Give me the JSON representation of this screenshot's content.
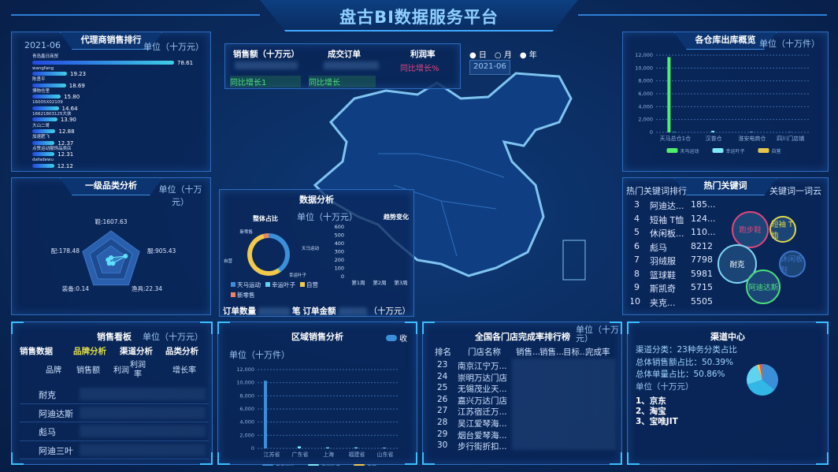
{
  "header": {
    "title": "盘古BI数据服务平台"
  },
  "agent_rank": {
    "title": "代理商销售排行",
    "date": "2021-06",
    "unit": "单位（十万元）",
    "items": [
      {
        "name": "青岛鑫日商贸",
        "value": 78.61
      },
      {
        "name": "wangfang",
        "value": 19.23
      },
      {
        "name": "陈勇平",
        "value": 18.69
      },
      {
        "name": "博物仓里",
        "value": 15.8
      },
      {
        "name": "16005X02109",
        "value": 14.64
      },
      {
        "name": "16621803125大侠",
        "value": 13.9
      },
      {
        "name": "大山二哥",
        "value": 12.88
      },
      {
        "name": "加速肥飞",
        "value": 12.37
      },
      {
        "name": "点赞运动服饰品类店",
        "value": 12.31
      },
      {
        "name": "dafadewu",
        "value": 12.12
      }
    ]
  },
  "category": {
    "title": "一级品类分析",
    "unit": "单位（十万元）",
    "axes": [
      {
        "name": "鞋",
        "value": 1607.63
      },
      {
        "name": "服",
        "value": 905.43
      },
      {
        "name": "渔具",
        "value": 22.34
      },
      {
        "name": "装备",
        "value": 0.14
      },
      {
        "name": "配",
        "value": 178.48
      }
    ]
  },
  "kpi": {
    "sales_label": "销售额（十万元）",
    "orders_label": "成交订单",
    "profit_label": "利润率",
    "profit_growth": "同比增长%",
    "sales_growth": "同比增长1",
    "orders_growth": "同比增长"
  },
  "period": {
    "options": [
      "日",
      "月",
      "年"
    ],
    "selected": "月",
    "date": "2021-06"
  },
  "analysis": {
    "title": "数据分析",
    "donut_title": "整体占比",
    "trend_title": "趋势变化",
    "unit": "单位（十万元）",
    "donut": [
      {
        "name": "天马运动",
        "value": 40,
        "color": "#3b8fd8"
      },
      {
        "name": "幸运叶子",
        "value": 1,
        "color": "#5fd3f0"
      },
      {
        "name": "自营",
        "value": 55,
        "color": "#f3c94a"
      },
      {
        "name": "新零售",
        "value": 4,
        "color": "#f08462"
      }
    ],
    "trend_y": [
      0,
      100,
      200,
      300,
      400,
      500,
      600
    ],
    "trend_x": [
      "第1周",
      "第2周",
      "第3周"
    ],
    "order_count_label": "订单数量",
    "order_count_unit": "笔",
    "order_amount_label": "订单金额",
    "order_amount_unit": "（十万元）"
  },
  "warehouse": {
    "title": "各仓库出库概览",
    "unit": "单位（十万件）",
    "chart_data": {
      "type": "bar",
      "categories": [
        "天马总仓1仓",
        "汉普仓",
        "淮安电商仓",
        "四川门店铺"
      ],
      "ylim": [
        0,
        12000
      ],
      "yticks": [
        0,
        2000,
        4000,
        6000,
        8000,
        10000,
        12000
      ],
      "series": [
        {
          "name": "天马运动",
          "color": "#4cf06a",
          "values": [
            11700,
            0,
            0,
            0
          ]
        },
        {
          "name": "幸运叶子",
          "color": "#7fe9f5",
          "values": [
            60,
            250,
            80,
            40
          ]
        },
        {
          "name": "自营",
          "color": "#e5c64a",
          "values": [
            0,
            0,
            0,
            0
          ]
        }
      ]
    }
  },
  "keywords": {
    "title": "热门关键词",
    "rank_title": "热门关键词排行",
    "cloud_title": "关键词一词云",
    "rows": [
      {
        "rank": "3",
        "word": "阿迪达...",
        "count": "185..."
      },
      {
        "rank": "4",
        "word": "短袖 T恤",
        "count": "124..."
      },
      {
        "rank": "5",
        "word": "休闲板...",
        "count": "110..."
      },
      {
        "rank": "6",
        "word": "彪马",
        "count": "8212"
      },
      {
        "rank": "7",
        "word": "羽绒服",
        "count": "7798"
      },
      {
        "rank": "8",
        "word": "篮球鞋",
        "count": "5981"
      },
      {
        "rank": "9",
        "word": "斯凯奇",
        "count": "5715"
      },
      {
        "rank": "10",
        "word": "夹克...",
        "count": "5505"
      }
    ],
    "cloud": [
      {
        "word": "跑步鞋",
        "color": "#e0457e"
      },
      {
        "word": "短袖 T恤",
        "color": "#e0d64a"
      },
      {
        "word": "耐克",
        "color": "#7fd8f5"
      },
      {
        "word": "休闲板鞋",
        "color": "#3b73c8"
      },
      {
        "word": "阿迪达斯",
        "color": "#4ce07a"
      }
    ]
  },
  "sales_board": {
    "title": "销售看板",
    "unit": "单位（十万元）",
    "tabs": [
      "销售数据",
      "品牌分析",
      "渠道分析",
      "品类分析"
    ],
    "active_tab": "品牌分析",
    "columns": [
      "品牌",
      "销售额",
      "利润",
      "利润率",
      "增长率"
    ],
    "brands": [
      "耐克",
      "阿迪达斯",
      "彪马",
      "阿迪三叶"
    ]
  },
  "region": {
    "title": "区域销售分析",
    "unit": "单位（十万件）",
    "toggle": "收",
    "chart_data": {
      "type": "bar",
      "categories": [
        "江苏省",
        "广东省",
        "上海",
        "福建省",
        "山东省"
      ],
      "ylim": [
        0,
        12000
      ],
      "yticks": [
        0,
        2000,
        4000,
        6000,
        8000,
        10000,
        12000
      ],
      "series": [
        {
          "name": "天马运动",
          "color": "#3b8fd8",
          "values": [
            10300,
            0,
            0,
            0,
            0
          ]
        },
        {
          "name": "幸运叶子",
          "color": "#7fe9f5",
          "values": [
            0,
            300,
            150,
            150,
            100
          ]
        },
        {
          "name": "自营",
          "color": "#f3c94a",
          "values": [
            0,
            0,
            0,
            0,
            0
          ]
        }
      ]
    }
  },
  "stores": {
    "title": "全国各门店完成率排行榜",
    "unit": "单位（十万元）",
    "columns": [
      "排名",
      "门店名称",
      "销售...",
      "销售...",
      "目标...",
      "完成率"
    ],
    "rows": [
      [
        "23",
        "南京江宁万..."
      ],
      [
        "24",
        "崇明万达门店"
      ],
      [
        "25",
        "无锡茂业天..."
      ],
      [
        "26",
        "嘉兴万达门店"
      ],
      [
        "27",
        "江苏宿迁万..."
      ],
      [
        "28",
        "吴江爱琴海..."
      ],
      [
        "29",
        "烟台爱琴海..."
      ],
      [
        "30",
        "步行街折扣..."
      ]
    ]
  },
  "channel": {
    "title": "渠道中心",
    "lines": [
      "渠道分类：23种务分类占比",
      "总体销售额占比：50.39%",
      "总体单量占比：50.86%",
      "单位（十万元）"
    ],
    "list": [
      "1、京东",
      "2、淘宝",
      "3、宝唯JIT"
    ],
    "pie": [
      {
        "value": 36,
        "color": "#3b8fd8"
      },
      {
        "value": 34,
        "color": "#33b7e6"
      },
      {
        "value": 24,
        "color": "#5fd3f0"
      },
      {
        "value": 3,
        "color": "#f3c94a"
      },
      {
        "value": 3,
        "color": "#e35a5a"
      }
    ]
  }
}
